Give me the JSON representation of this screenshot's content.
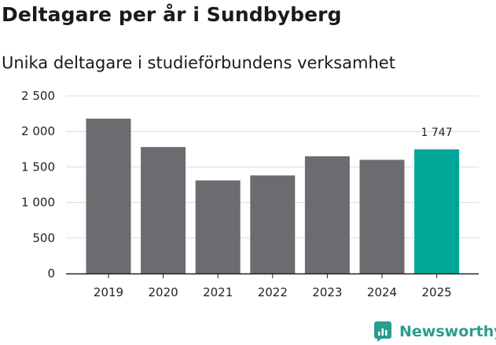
{
  "chart_data": {
    "type": "bar",
    "title": "Deltagare per år i Sundbyberg",
    "subtitle": "Unika deltagare i studieförbundens verksamhet",
    "xlabel": "",
    "ylabel": "",
    "categories": [
      "2019",
      "2020",
      "2021",
      "2022",
      "2023",
      "2024",
      "2025"
    ],
    "values": [
      2180,
      1780,
      1310,
      1380,
      1650,
      1600,
      1747
    ],
    "highlight_index": 6,
    "data_labels": [
      {
        "index": 6,
        "text": "1 747"
      }
    ],
    "ylim": [
      0,
      2500
    ],
    "yticks": [
      0,
      500,
      1000,
      1500,
      2000,
      2500
    ],
    "ytick_labels": [
      "0",
      "500",
      "1 000",
      "1 500",
      "2 000",
      "2 500"
    ],
    "grid": true,
    "colors": {
      "bar": "#6c6b70",
      "highlight": "#00a698",
      "grid": "#dcdcdc",
      "axis": "#222222"
    }
  },
  "brand": {
    "name": "Newsworthy",
    "icon": "newsworthy-logo-icon",
    "color": "#2a9d8f"
  }
}
